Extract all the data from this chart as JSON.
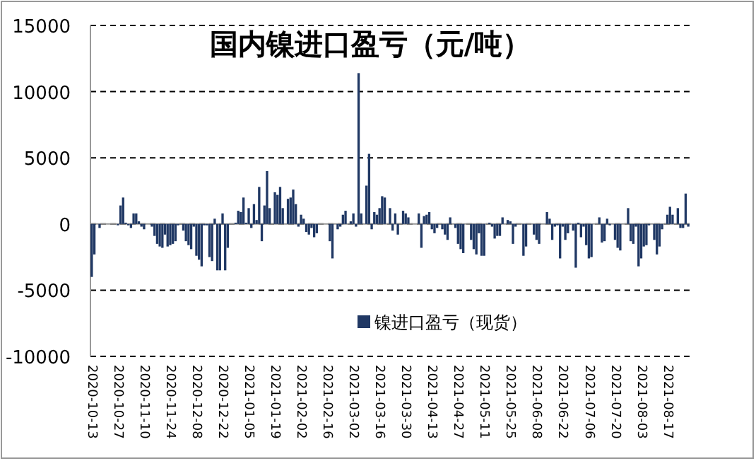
{
  "chart_data": {
    "type": "bar",
    "title": "国内镍进口盈亏（元/吨）",
    "categories": [
      "2020-10-13",
      null,
      null,
      null,
      null,
      null,
      null,
      null,
      null,
      null,
      "2020-10-27",
      null,
      null,
      null,
      null,
      null,
      null,
      null,
      null,
      null,
      "2020-11-10",
      null,
      null,
      null,
      null,
      null,
      null,
      null,
      null,
      null,
      "2020-11-24",
      null,
      null,
      null,
      null,
      null,
      null,
      null,
      null,
      null,
      "2020-12-08",
      null,
      null,
      null,
      null,
      null,
      null,
      null,
      null,
      null,
      "2020-12-22",
      null,
      null,
      null,
      null,
      null,
      null,
      null,
      null,
      null,
      "2021-01-05",
      null,
      null,
      null,
      null,
      null,
      null,
      null,
      null,
      null,
      "2021-01-19",
      null,
      null,
      null,
      null,
      null,
      null,
      null,
      null,
      null,
      "2021-02-02",
      null,
      null,
      null,
      null,
      null,
      null,
      null,
      null,
      null,
      "2021-02-16",
      null,
      null,
      null,
      null,
      null,
      null,
      null,
      null,
      null,
      "2021-03-02",
      null,
      null,
      null,
      null,
      null,
      null,
      null,
      null,
      null,
      "2021-03-16",
      null,
      null,
      null,
      null,
      null,
      null,
      null,
      null,
      null,
      "2021-03-30",
      null,
      null,
      null,
      null,
      null,
      null,
      null,
      null,
      null,
      "2021-04-13",
      null,
      null,
      null,
      null,
      null,
      null,
      null,
      null,
      null,
      "2021-04-27",
      null,
      null,
      null,
      null,
      null,
      null,
      null,
      null,
      null,
      "2021-05-11",
      null,
      null,
      null,
      null,
      null,
      null,
      null,
      null,
      null,
      "2021-05-25",
      null,
      null,
      null,
      null,
      null,
      null,
      null,
      null,
      null,
      "2021-06-08",
      null,
      null,
      null,
      null,
      null,
      null,
      null,
      null,
      null,
      "2021-06-22",
      null,
      null,
      null,
      null,
      null,
      null,
      null,
      null,
      null,
      "2021-07-06",
      null,
      null,
      null,
      null,
      null,
      null,
      null,
      null,
      null,
      "2021-07-20",
      null,
      null,
      null,
      null,
      null,
      null,
      null,
      null,
      null,
      "2021-08-03",
      null,
      null,
      null,
      null,
      null,
      null,
      null,
      null,
      null,
      "2021-08-17",
      null,
      null,
      null,
      null,
      null,
      null,
      null,
      null
    ],
    "series": [
      {
        "name": "镍进口盈亏（现货）",
        "color": "#203864",
        "values": [
          -4000,
          -2300,
          0,
          -300,
          0,
          0,
          0,
          0,
          0,
          0,
          -100,
          1400,
          2000,
          100,
          -100,
          -300,
          800,
          800,
          200,
          -200,
          -400,
          0,
          0,
          -200,
          -900,
          -1500,
          -1700,
          -1800,
          -800,
          -1700,
          -1600,
          -1500,
          -1300,
          -100,
          0,
          -500,
          -1300,
          -1600,
          -1900,
          -200,
          -2400,
          -2700,
          -3200,
          -100,
          -100,
          -2500,
          -2800,
          400,
          -3500,
          -3500,
          800,
          -3500,
          -1800,
          0,
          0,
          100,
          1000,
          900,
          2000,
          100,
          1200,
          -300,
          1500,
          300,
          2800,
          -1300,
          1400,
          4000,
          1200,
          0,
          2400,
          2200,
          2800,
          1200,
          0,
          1900,
          2000,
          2600,
          1500,
          -200,
          700,
          400,
          -600,
          -800,
          -300,
          -1000,
          -700,
          0,
          0,
          0,
          0,
          -1300,
          -2600,
          0,
          -400,
          -200,
          700,
          1000,
          0,
          200,
          800,
          -200,
          11400,
          800,
          0,
          2900,
          5300,
          -400,
          900,
          700,
          1200,
          2100,
          2000,
          0,
          1200,
          -500,
          800,
          -800,
          0,
          1000,
          800,
          500,
          0,
          0,
          0,
          800,
          -1800,
          600,
          700,
          900,
          -400,
          -700,
          -300,
          0,
          -400,
          -800,
          -1200,
          500,
          0,
          -300,
          -1500,
          -1900,
          -2200,
          0,
          0,
          -1200,
          -1900,
          -2300,
          -700,
          -2400,
          -2400,
          0,
          100,
          -200,
          -1100,
          -900,
          -900,
          500,
          0,
          300,
          200,
          -1500,
          -200,
          0,
          0,
          -2400,
          -1700,
          0,
          0,
          -800,
          -1200,
          -1500,
          0,
          0,
          900,
          400,
          -1200,
          -200,
          -100,
          -2600,
          -200,
          -1200,
          -700,
          0,
          -500,
          -3300,
          100,
          -1000,
          -200,
          -1600,
          -2600,
          -2500,
          0,
          0,
          500,
          -1400,
          -1300,
          400,
          -100,
          0,
          -1200,
          -1800,
          -2000,
          0,
          0,
          1200,
          -1300,
          -1500,
          -200,
          -3200,
          -2600,
          -1700,
          -1600,
          -100,
          0,
          -1200,
          -2300,
          -1700,
          -400,
          0,
          700,
          1300,
          700,
          0,
          1200,
          -300,
          -300,
          2300,
          -200
        ]
      }
    ],
    "ylim": [
      -10000,
      15000
    ],
    "yticks": [
      -10000,
      -5000,
      0,
      5000,
      10000,
      15000
    ],
    "grid": "y",
    "legend": "bottom"
  }
}
